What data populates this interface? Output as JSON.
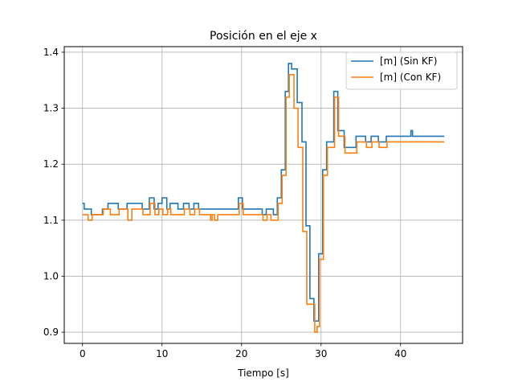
{
  "chart_data": {
    "type": "line",
    "title": "Posición en el eje x",
    "xlabel": "Tiempo [s]",
    "ylabel": "",
    "xlim": [
      -2.3,
      47.8
    ],
    "ylim": [
      0.88,
      1.41
    ],
    "xticks": [
      0,
      10,
      20,
      30,
      40
    ],
    "yticks": [
      0.9,
      1.0,
      1.1,
      1.2,
      1.3,
      1.4
    ],
    "xtick_labels": [
      "0",
      "10",
      "20",
      "30",
      "40"
    ],
    "ytick_labels": [
      "0.9",
      "1.0",
      "1.1",
      "1.2",
      "1.3",
      "1.4"
    ],
    "grid": true,
    "legend_position": "top-right",
    "step": true,
    "series": [
      {
        "name": "[m] (Sin KF)",
        "color": "#1f77b4",
        "x": [
          0,
          0.2,
          1.1,
          2.5,
          3.2,
          4.5,
          5.6,
          6.1,
          7.5,
          8.4,
          9.0,
          9.5,
          10.0,
          10.6,
          11.0,
          12.0,
          12.7,
          13.4,
          14.0,
          14.6,
          15.9,
          16.2,
          16.5,
          16.9,
          19.0,
          19.6,
          20.1,
          20.9,
          22.1,
          22.6,
          23.1,
          23.6,
          24.0,
          24.5,
          25.0,
          25.5,
          25.9,
          26.3,
          26.5,
          27.0,
          27.6,
          28.1,
          28.6,
          29.1,
          29.7,
          30.2,
          30.7,
          31.2,
          31.6,
          32.1,
          32.9,
          33.4,
          34.4,
          35.6,
          36.3,
          37.2,
          38.2,
          41.3,
          41.5,
          45.5
        ],
        "y": [
          1.13,
          1.12,
          1.11,
          1.12,
          1.13,
          1.12,
          1.13,
          1.13,
          1.12,
          1.14,
          1.12,
          1.13,
          1.14,
          1.12,
          1.13,
          1.12,
          1.13,
          1.12,
          1.13,
          1.12,
          1.12,
          1.12,
          1.12,
          1.12,
          1.12,
          1.14,
          1.12,
          1.12,
          1.12,
          1.11,
          1.12,
          1.12,
          1.11,
          1.14,
          1.19,
          1.33,
          1.38,
          1.37,
          1.37,
          1.31,
          1.24,
          1.09,
          0.96,
          0.92,
          1.04,
          1.19,
          1.24,
          1.24,
          1.33,
          1.26,
          1.23,
          1.23,
          1.25,
          1.24,
          1.25,
          1.24,
          1.25,
          1.26,
          1.25,
          1.25
        ]
      },
      {
        "name": "[m] (Con KF)",
        "color": "#ff7f0e",
        "x": [
          0,
          0.3,
          0.7,
          1.2,
          2.6,
          3.5,
          4.6,
          5.5,
          5.7,
          6.2,
          7.6,
          8.5,
          9.1,
          9.6,
          10.1,
          10.7,
          11.1,
          12.1,
          12.8,
          13.5,
          14.1,
          14.7,
          15.6,
          16.1,
          16.3,
          16.6,
          17.0,
          19.1,
          19.7,
          20.2,
          21.0,
          22.2,
          22.7,
          23.2,
          23.7,
          24.1,
          24.6,
          25.1,
          25.6,
          26.0,
          26.4,
          26.6,
          27.1,
          27.7,
          28.2,
          28.7,
          29.2,
          29.5,
          29.8,
          30.3,
          30.8,
          31.3,
          31.7,
          32.2,
          33.0,
          34.5,
          35.7,
          36.4,
          37.3,
          38.3,
          41.4,
          45.5
        ],
        "y": [
          1.11,
          1.11,
          1.1,
          1.11,
          1.12,
          1.11,
          1.12,
          1.12,
          1.1,
          1.12,
          1.11,
          1.13,
          1.11,
          1.12,
          1.11,
          1.12,
          1.11,
          1.11,
          1.12,
          1.11,
          1.12,
          1.11,
          1.11,
          1.1,
          1.11,
          1.1,
          1.11,
          1.11,
          1.13,
          1.11,
          1.11,
          1.11,
          1.1,
          1.11,
          1.1,
          1.1,
          1.13,
          1.18,
          1.32,
          1.36,
          1.36,
          1.3,
          1.23,
          1.08,
          0.95,
          0.95,
          0.9,
          0.91,
          1.03,
          1.18,
          1.23,
          1.23,
          1.32,
          1.25,
          1.22,
          1.24,
          1.23,
          1.24,
          1.23,
          1.24,
          1.24,
          1.24
        ]
      }
    ]
  }
}
